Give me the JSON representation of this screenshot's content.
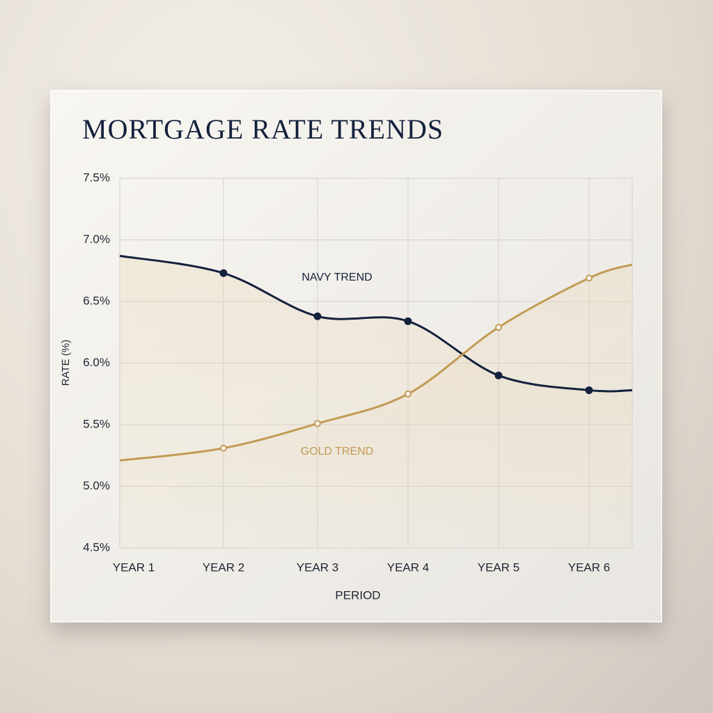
{
  "chart_data": {
    "type": "line",
    "title": "MORTGAGE RATE TRENDS",
    "x_label": "PERIOD",
    "y_label": "RATE (%)",
    "categories": [
      "YEAR 1",
      "YEAR 2",
      "YEAR 3",
      "YEAR 4",
      "YEAR 5",
      "YEAR 6",
      null
    ],
    "series": [
      {
        "name": "NAVY TREND",
        "color": "#14213d",
        "values": [
          6.87,
          6.73,
          6.38,
          6.34,
          5.9,
          5.78,
          5.78
        ]
      },
      {
        "name": "GOLD TREND",
        "color": "#c29a55",
        "values": [
          5.21,
          5.31,
          5.51,
          5.75,
          6.29,
          6.69,
          6.8
        ]
      }
    ],
    "ylim": [
      4.5,
      7.5
    ],
    "yticks": [
      {
        "value": 4.5,
        "label": "4.5%"
      },
      {
        "value": 5.0,
        "label": "5.0%"
      },
      {
        "value": 5.5,
        "label": "5.5%"
      },
      {
        "value": 6.0,
        "label": "6.0%"
      },
      {
        "value": 6.5,
        "label": "6.5%"
      },
      {
        "value": 7.0,
        "label": "7.0%"
      },
      {
        "value": 7.5,
        "label": "7.5%"
      }
    ],
    "grid": true
  }
}
